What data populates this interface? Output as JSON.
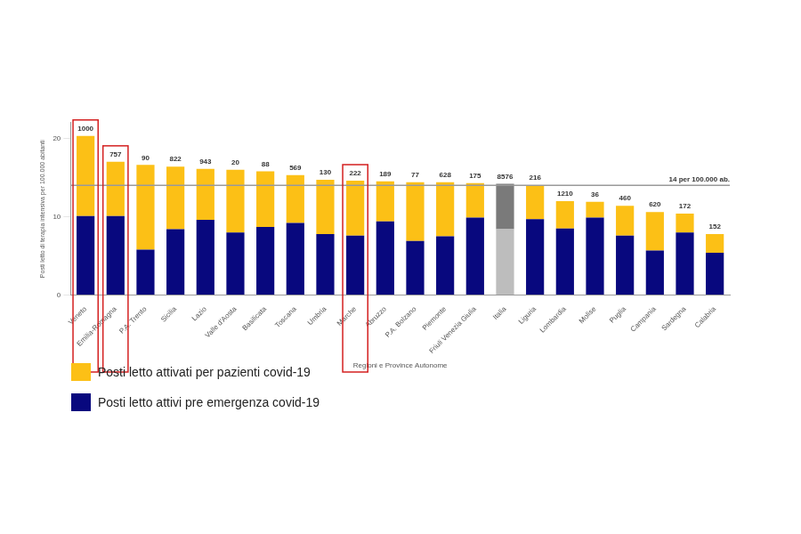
{
  "chart_data": {
    "type": "bar",
    "stacked": true,
    "y_label": "Posti letto di terapia intensiva per 100.000 abitanti",
    "x_label": "Regioni e Province Autonome",
    "categories": [
      "Veneto",
      "Emilia-Romagna",
      "P.A. Trento",
      "Sicilia",
      "Lazio",
      "Valle d'Aosta",
      "Basilicata",
      "Toscana",
      "Umbria",
      "Marche",
      "Abruzzo",
      "P.A. Bolzano",
      "Piemonte",
      "Friuli Venezia Giulia",
      "Italia",
      "Liguria",
      "Lombardia",
      "Molise",
      "Puglia",
      "Campania",
      "Sardegna",
      "Calabria"
    ],
    "series": [
      {
        "name": "Posti letto attivi pre emergenza covid-19",
        "color": "#08087e",
        "colors": [
          "#08087e",
          "#08087e",
          "#08087e",
          "#08087e",
          "#08087e",
          "#08087e",
          "#08087e",
          "#08087e",
          "#08087e",
          "#08087e",
          "#08087e",
          "#08087e",
          "#08087e",
          "#08087e",
          "#bdbdbd",
          "#08087e",
          "#08087e",
          "#08087e",
          "#08087e",
          "#08087e",
          "#08087e",
          "#08087e"
        ],
        "values": [
          10.1,
          10.1,
          5.8,
          8.4,
          9.6,
          8.0,
          8.7,
          9.2,
          7.8,
          7.6,
          9.4,
          6.9,
          7.5,
          9.9,
          8.4,
          9.7,
          8.5,
          9.9,
          7.6,
          5.7,
          8.0,
          5.4
        ]
      },
      {
        "name": "Posti letto attivati per pazienti covid-19",
        "color": "#fcc016",
        "colors": [
          "#fcc016",
          "#fcc016",
          "#fcc016",
          "#fcc016",
          "#fcc016",
          "#fcc016",
          "#fcc016",
          "#fcc016",
          "#fcc016",
          "#fcc016",
          "#fcc016",
          "#fcc016",
          "#fcc016",
          "#fcc016",
          "#7a7a7a",
          "#fcc016",
          "#fcc016",
          "#fcc016",
          "#fcc016",
          "#fcc016",
          "#fcc016",
          "#fcc016"
        ],
        "values": [
          10.2,
          6.9,
          10.8,
          8.0,
          6.5,
          8.0,
          7.1,
          6.1,
          6.9,
          7.0,
          5.1,
          7.5,
          6.9,
          4.4,
          5.8,
          4.3,
          3.5,
          2.0,
          3.8,
          4.9,
          2.4,
          2.4
        ]
      }
    ],
    "total_labels": [
      1000,
      757,
      90,
      822,
      943,
      20,
      88,
      569,
      130,
      222,
      189,
      77,
      628,
      175,
      8576,
      216,
      1210,
      36,
      460,
      620,
      172,
      152
    ],
    "reference_line": {
      "value": 14,
      "label": "14 per 100.000 ab."
    },
    "highlighted": [
      "Veneto",
      "Emilia-Romagna",
      "Marche"
    ],
    "ylim": [
      0,
      22
    ],
    "yticks": [
      0,
      10,
      20
    ],
    "grid": false,
    "legend": "bottom"
  }
}
